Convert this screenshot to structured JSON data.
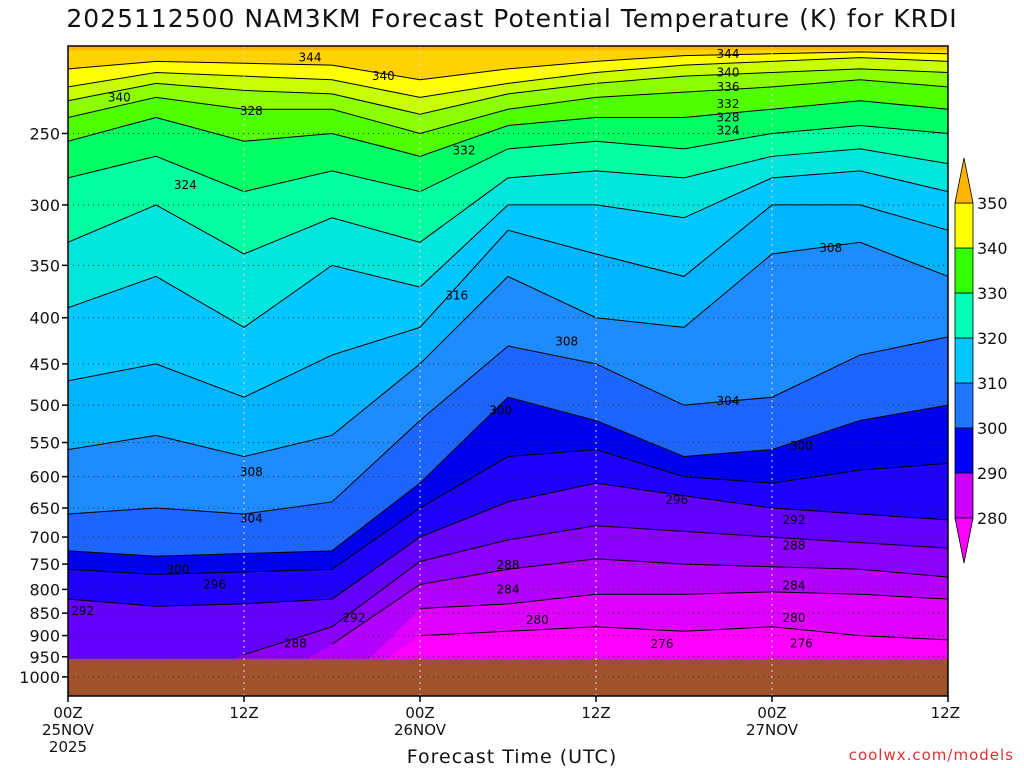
{
  "title": "2025112500 NAM3KM Forecast Potential Temperature (K) for KRDI",
  "credit": "coolwx.com/models",
  "chart_data": {
    "type": "heatmap",
    "title": "2025112500 NAM3KM Forecast Potential Temperature (K) for KRDI",
    "xlabel": "Forecast Time (UTC)",
    "ylabel": "",
    "x_ticks": [
      {
        "hour": 0,
        "lines": [
          "00Z",
          "25NOV",
          "2025"
        ]
      },
      {
        "hour": 12,
        "lines": [
          "12Z"
        ]
      },
      {
        "hour": 24,
        "lines": [
          "00Z",
          "26NOV"
        ]
      },
      {
        "hour": 36,
        "lines": [
          "12Z"
        ]
      },
      {
        "hour": 48,
        "lines": [
          "00Z",
          "27NOV"
        ]
      },
      {
        "hour": 60,
        "lines": [
          "12Z"
        ]
      }
    ],
    "y_ticks": [
      250,
      300,
      350,
      400,
      450,
      500,
      550,
      600,
      650,
      700,
      750,
      800,
      850,
      900,
      950,
      1000
    ],
    "y_scale": "log-pressure",
    "ylim": [
      1050,
      200
    ],
    "xlim": [
      0,
      60
    ],
    "colorbar": {
      "levels": [
        280,
        290,
        300,
        310,
        320,
        330,
        340,
        350
      ],
      "colors": [
        "#ff00ff",
        "#cc00ff",
        "#7a00ff",
        "#0000ff",
        "#1e78ff",
        "#00c8ff",
        "#00ffb4",
        "#32ff00",
        "#b4ff00",
        "#ffff00",
        "#ffb400"
      ]
    },
    "columns_hours": [
      0,
      6,
      12,
      18,
      24,
      30,
      36,
      42,
      48,
      54,
      60
    ],
    "isentropes": [
      {
        "theta": 276,
        "pressures": [
          null,
          null,
          null,
          null,
          900,
          890,
          880,
          890,
          880,
          900,
          910
        ]
      },
      {
        "theta": 280,
        "pressures": [
          null,
          null,
          null,
          null,
          840,
          830,
          810,
          810,
          805,
          810,
          820
        ]
      },
      {
        "theta": 284,
        "pressures": [
          null,
          null,
          null,
          920,
          790,
          760,
          740,
          750,
          755,
          760,
          775
        ]
      },
      {
        "theta": 288,
        "pressures": [
          null,
          null,
          945,
          880,
          745,
          705,
          680,
          690,
          700,
          710,
          720
        ]
      },
      {
        "theta": 292,
        "pressures": [
          820,
          835,
          830,
          820,
          700,
          640,
          610,
          630,
          650,
          660,
          670
        ]
      },
      {
        "theta": 296,
        "pressures": [
          760,
          770,
          765,
          760,
          650,
          570,
          560,
          600,
          610,
          590,
          580
        ]
      },
      {
        "theta": 300,
        "pressures": [
          725,
          735,
          730,
          725,
          610,
          490,
          520,
          570,
          560,
          520,
          500
        ]
      },
      {
        "theta": 304,
        "pressures": [
          660,
          650,
          660,
          640,
          520,
          430,
          450,
          500,
          490,
          440,
          420
        ]
      },
      {
        "theta": 308,
        "pressures": [
          560,
          540,
          570,
          540,
          450,
          360,
          400,
          410,
          340,
          330,
          360
        ]
      },
      {
        "theta": 312,
        "pressures": [
          470,
          450,
          490,
          440,
          410,
          320,
          340,
          360,
          300,
          300,
          320
        ]
      },
      {
        "theta": 316,
        "pressures": [
          390,
          360,
          410,
          350,
          370,
          300,
          300,
          310,
          280,
          275,
          290
        ]
      },
      {
        "theta": 320,
        "pressures": [
          330,
          300,
          340,
          310,
          330,
          280,
          275,
          280,
          265,
          260,
          270
        ]
      },
      {
        "theta": 324,
        "pressures": [
          280,
          265,
          290,
          275,
          290,
          260,
          255,
          260,
          250,
          245,
          250
        ]
      },
      {
        "theta": 328,
        "pressures": [
          255,
          240,
          255,
          250,
          265,
          245,
          240,
          240,
          235,
          230,
          235
        ]
      },
      {
        "theta": 332,
        "pressures": [
          240,
          228,
          235,
          235,
          250,
          235,
          228,
          225,
          222,
          218,
          222
        ]
      },
      {
        "theta": 336,
        "pressures": [
          230,
          220,
          224,
          226,
          238,
          226,
          220,
          216,
          214,
          212,
          214
        ]
      },
      {
        "theta": 340,
        "pressures": [
          222,
          214,
          216,
          218,
          228,
          220,
          214,
          210,
          208,
          206,
          208
        ]
      },
      {
        "theta": 344,
        "pressures": [
          212,
          208,
          209,
          210,
          218,
          212,
          208,
          205,
          204,
          203,
          204
        ]
      }
    ],
    "contour_labels": [
      {
        "text": "344",
        "hour": 16.5,
        "p": 206
      },
      {
        "text": "340",
        "hour": 21.5,
        "p": 216
      },
      {
        "text": "340",
        "hour": 3.5,
        "p": 228
      },
      {
        "text": "328",
        "hour": 12.5,
        "p": 236
      },
      {
        "text": "332",
        "hour": 27,
        "p": 261
      },
      {
        "text": "324",
        "hour": 8,
        "p": 285
      },
      {
        "text": "316",
        "hour": 26.5,
        "p": 378
      },
      {
        "text": "308",
        "hour": 34,
        "p": 425
      },
      {
        "text": "300",
        "hour": 29.5,
        "p": 507
      },
      {
        "text": "308",
        "hour": 12.5,
        "p": 593
      },
      {
        "text": "304",
        "hour": 12.5,
        "p": 668
      },
      {
        "text": "300",
        "hour": 7.5,
        "p": 760
      },
      {
        "text": "296",
        "hour": 10,
        "p": 790
      },
      {
        "text": "292",
        "hour": 1,
        "p": 845
      },
      {
        "text": "292",
        "hour": 19.5,
        "p": 860
      },
      {
        "text": "288",
        "hour": 15.5,
        "p": 918
      },
      {
        "text": "288",
        "hour": 30,
        "p": 752
      },
      {
        "text": "284",
        "hour": 30,
        "p": 800
      },
      {
        "text": "280",
        "hour": 32,
        "p": 865
      },
      {
        "text": "276",
        "hour": 40.5,
        "p": 920
      },
      {
        "text": "296",
        "hour": 41.5,
        "p": 637
      },
      {
        "text": "304",
        "hour": 45,
        "p": 495
      },
      {
        "text": "300",
        "hour": 50,
        "p": 555
      },
      {
        "text": "292",
        "hour": 49.5,
        "p": 670
      },
      {
        "text": "288",
        "hour": 49.5,
        "p": 715
      },
      {
        "text": "284",
        "hour": 49.5,
        "p": 792
      },
      {
        "text": "280",
        "hour": 49.5,
        "p": 860
      },
      {
        "text": "276",
        "hour": 50,
        "p": 918
      },
      {
        "text": "308",
        "hour": 52,
        "p": 335
      },
      {
        "text": "344",
        "hour": 45,
        "p": 204
      },
      {
        "text": "340",
        "hour": 45,
        "p": 214
      },
      {
        "text": "336",
        "hour": 45,
        "p": 222
      },
      {
        "text": "332",
        "hour": 45,
        "p": 232
      },
      {
        "text": "328",
        "hour": 45,
        "p": 240
      },
      {
        "text": "324",
        "hour": 45,
        "p": 248
      }
    ],
    "terrain": {
      "color": "#a0522d",
      "surface_pressure": 955
    }
  }
}
